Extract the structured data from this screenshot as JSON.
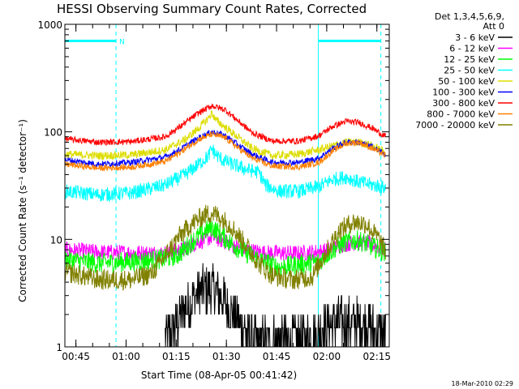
{
  "chart_data": {
    "type": "line",
    "title": "HESSI Observing Summary Count Rates, Corrected",
    "xlabel": "Start Time (08-Apr-05 00:41:42)",
    "ylabel": "Corrected Count Rate (s⁻¹ detector⁻¹)",
    "ylim": [
      1,
      1000
    ],
    "yscale": "log",
    "x_unit": "minutes after 00:41:42",
    "xlim": [
      0,
      97
    ],
    "x_ticks": [
      {
        "t": 3.3,
        "label": "00:45"
      },
      {
        "t": 18.3,
        "label": "01:00"
      },
      {
        "t": 33.3,
        "label": "01:15"
      },
      {
        "t": 48.3,
        "label": "01:30"
      },
      {
        "t": 63.3,
        "label": "01:45"
      },
      {
        "t": 78.3,
        "label": "02:00"
      },
      {
        "t": 93.3,
        "label": "02:15"
      }
    ],
    "y_ticks": [
      {
        "v": 1,
        "label": "1"
      },
      {
        "v": 10,
        "label": "10"
      },
      {
        "v": 100,
        "label": "100"
      },
      {
        "v": 1000,
        "label": "1000"
      }
    ],
    "legend_header": [
      "Det 1,3,4,5,6,9,",
      "Att 0"
    ],
    "legend_position": "right",
    "series": [
      {
        "name": "3 - 6 keV",
        "color": "#000000",
        "x": [
          30,
          33,
          36,
          39,
          42,
          45,
          48,
          51,
          54,
          56,
          74,
          78,
          82,
          86,
          90,
          94,
          96
        ],
        "y": [
          1.1,
          1.5,
          2.3,
          3.0,
          3.5,
          3.4,
          2.6,
          1.9,
          1.4,
          1.1,
          1.2,
          1.6,
          1.7,
          1.7,
          1.6,
          1.4,
          1.2
        ]
      },
      {
        "name": "6 - 12 keV",
        "color": "#ff00ff",
        "x": [
          0,
          10,
          20,
          30,
          35,
          40,
          44,
          48,
          52,
          56,
          60,
          70,
          78,
          82,
          86,
          90,
          94,
          96
        ],
        "y": [
          8.0,
          7.6,
          7.5,
          7.4,
          8.0,
          9.5,
          10.5,
          9.5,
          8.3,
          7.8,
          7.5,
          7.4,
          7.8,
          8.8,
          9.3,
          9.2,
          8.5,
          8.0
        ]
      },
      {
        "name": "12 - 25 keV",
        "color": "#00ff00",
        "x": [
          0,
          10,
          20,
          30,
          34,
          38,
          42,
          44,
          46,
          50,
          54,
          58,
          64,
          70,
          76,
          80,
          84,
          88,
          92,
          96
        ],
        "y": [
          6.5,
          6.0,
          6.2,
          6.6,
          7.2,
          9.5,
          12.0,
          13.0,
          11.5,
          9.0,
          7.5,
          6.5,
          5.5,
          5.8,
          6.2,
          8.0,
          9.5,
          9.8,
          8.5,
          7.5
        ]
      },
      {
        "name": "25 - 50 keV",
        "color": "#00ffff",
        "x": [
          0,
          10,
          20,
          30,
          36,
          40,
          43,
          44,
          45,
          47,
          50,
          54,
          58,
          60,
          64,
          70,
          76,
          80,
          84,
          88,
          92,
          96
        ],
        "y": [
          28,
          26,
          27,
          32,
          40,
          50,
          60,
          70,
          62,
          55,
          50,
          45,
          42,
          32,
          28,
          28,
          31,
          36,
          38,
          34,
          32,
          30
        ]
      },
      {
        "name": "50 - 100 keV",
        "color": "#dddd00",
        "x": [
          0,
          10,
          20,
          30,
          36,
          40,
          43,
          44,
          45,
          48,
          52,
          56,
          62,
          70,
          76,
          80,
          84,
          88,
          92,
          96
        ],
        "y": [
          62,
          60,
          61,
          68,
          85,
          108,
          135,
          150,
          130,
          110,
          88,
          70,
          60,
          62,
          68,
          74,
          80,
          80,
          74,
          64
        ]
      },
      {
        "name": "100 - 300 keV",
        "color": "#0000ff",
        "x": [
          0,
          10,
          20,
          30,
          35,
          40,
          44,
          48,
          52,
          56,
          62,
          70,
          76,
          80,
          84,
          88,
          92,
          96
        ],
        "y": [
          55,
          50,
          52,
          58,
          70,
          88,
          100,
          92,
          75,
          62,
          52,
          52,
          57,
          70,
          80,
          80,
          72,
          62
        ]
      },
      {
        "name": "300 - 800 keV",
        "color": "#ff0000",
        "x": [
          0,
          10,
          20,
          30,
          35,
          40,
          44,
          48,
          52,
          56,
          62,
          70,
          76,
          80,
          84,
          88,
          92,
          96
        ],
        "y": [
          86,
          80,
          81,
          90,
          115,
          150,
          175,
          160,
          125,
          98,
          82,
          82,
          92,
          112,
          125,
          122,
          108,
          90
        ]
      },
      {
        "name": "800 - 7000 keV",
        "color": "#ff8000",
        "x": [
          0,
          10,
          20,
          30,
          35,
          40,
          44,
          48,
          52,
          56,
          62,
          70,
          76,
          80,
          84,
          88,
          92,
          96
        ],
        "y": [
          50,
          46,
          47,
          53,
          66,
          85,
          95,
          88,
          70,
          57,
          48,
          47,
          52,
          66,
          78,
          80,
          70,
          60
        ]
      },
      {
        "name": "7000 - 20000 keV",
        "color": "#808000",
        "x": [
          0,
          10,
          20,
          26,
          30,
          34,
          38,
          42,
          44,
          46,
          50,
          54,
          58,
          62,
          68,
          74,
          78,
          82,
          86,
          90,
          94,
          96
        ],
        "y": [
          5.0,
          4.2,
          4.2,
          4.8,
          7.0,
          10.5,
          14.0,
          17.0,
          17.5,
          16.5,
          13.0,
          9.0,
          6.0,
          4.6,
          4.2,
          4.5,
          7.5,
          12.0,
          14.5,
          14.0,
          10.0,
          7.5
        ]
      }
    ],
    "annotations": {
      "vertical_lines": [
        {
          "t": 0,
          "style": "solid",
          "color": "#00ffff"
        },
        {
          "t": 15.3,
          "style": "dashed",
          "color": "#00ffff"
        },
        {
          "t": 75.8,
          "style": "solid",
          "color": "#00ffff"
        },
        {
          "t": 94.5,
          "style": "dashed",
          "color": "#00ffff"
        }
      ],
      "bars": [
        {
          "t0": 0,
          "t1": 15.3,
          "value": 700,
          "label": "N"
        },
        {
          "t0": 75.8,
          "t1": 94.5,
          "value": 700,
          "label": ""
        }
      ]
    },
    "footer_date": "18-Mar-2010 02:29"
  }
}
